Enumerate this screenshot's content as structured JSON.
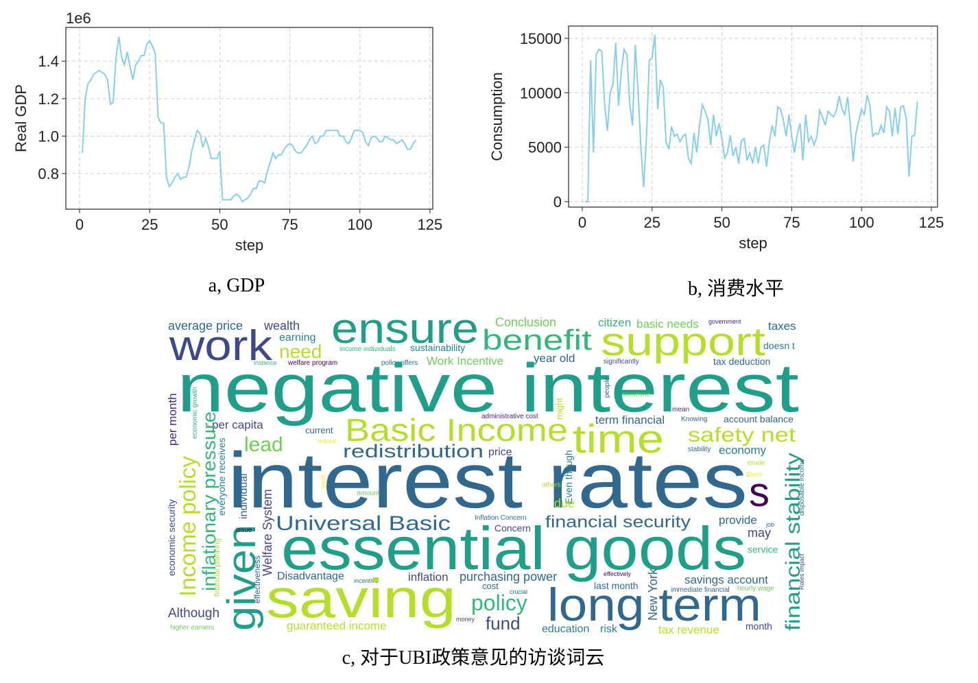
{
  "chart_data": [
    {
      "type": "line",
      "ylabel": "Real GDP",
      "xlabel": "step",
      "offset_text": "1e6",
      "caption": "a, GDP",
      "grid": true,
      "xlim": [
        -4.9,
        126
      ],
      "ylim": [
        0.61,
        1.58
      ],
      "xticks": [
        0,
        25,
        50,
        75,
        100,
        125
      ],
      "yticks": [
        {
          "value": 0.8,
          "label": "0.8"
        },
        {
          "value": 1.0,
          "label": "1.0"
        },
        {
          "value": 1.2,
          "label": "1.2"
        },
        {
          "value": 1.4,
          "label": "1.4"
        }
      ],
      "x": [
        1,
        2,
        3,
        4,
        5,
        6,
        7,
        8,
        9,
        10,
        11,
        12,
        13,
        14,
        15,
        16,
        17,
        18,
        19,
        20,
        21,
        22,
        23,
        24,
        25,
        26,
        27,
        28,
        29,
        30,
        31,
        32,
        33,
        34,
        35,
        36,
        37,
        38,
        39,
        40,
        41,
        42,
        43,
        44,
        45,
        46,
        47,
        48,
        49,
        50,
        51,
        52,
        53,
        54,
        55,
        56,
        57,
        58,
        59,
        60,
        61,
        62,
        63,
        64,
        65,
        66,
        67,
        68,
        69,
        70,
        71,
        72,
        73,
        74,
        75,
        76,
        77,
        78,
        79,
        80,
        81,
        82,
        83,
        84,
        85,
        86,
        87,
        88,
        89,
        90,
        91,
        92,
        93,
        94,
        95,
        96,
        97,
        98,
        99,
        100,
        101,
        102,
        103,
        104,
        105,
        106,
        107,
        108,
        109,
        110,
        111,
        112,
        113,
        114,
        115,
        116,
        117,
        118,
        119,
        120
      ],
      "series": [
        {
          "color": "#87ceeb",
          "values": [
            0.91,
            1.2,
            1.28,
            1.3,
            1.33,
            1.34,
            1.35,
            1.34,
            1.33,
            1.3,
            1.17,
            1.18,
            1.42,
            1.53,
            1.42,
            1.38,
            1.45,
            1.37,
            1.3,
            1.38,
            1.4,
            1.43,
            1.43,
            1.49,
            1.51,
            1.48,
            1.44,
            1.1,
            1.07,
            1.07,
            0.78,
            0.73,
            0.75,
            0.78,
            0.8,
            0.77,
            0.78,
            0.78,
            0.83,
            0.92,
            0.98,
            1.03,
            1.01,
            0.94,
            0.99,
            0.94,
            0.88,
            0.88,
            0.88,
            0.92,
            0.66,
            0.66,
            0.66,
            0.66,
            0.68,
            0.69,
            0.68,
            0.65,
            0.66,
            0.67,
            0.69,
            0.72,
            0.72,
            0.76,
            0.76,
            0.75,
            0.81,
            0.86,
            0.91,
            0.88,
            0.9,
            0.9,
            0.93,
            0.95,
            0.96,
            0.95,
            0.92,
            0.91,
            0.91,
            0.93,
            0.95,
            0.98,
            1.0,
            0.96,
            0.97,
            1.0,
            1.0,
            1.03,
            1.03,
            1.03,
            1.03,
            1.03,
            1.0,
            1.0,
            0.97,
            0.96,
            0.99,
            1.03,
            1.03,
            1.03,
            1.02,
            0.97,
            0.95,
            0.99,
            1.0,
            0.99,
            0.97,
            0.97,
            1.0,
            0.99,
            0.98,
            0.98,
            0.96,
            0.97,
            0.98,
            0.96,
            0.93,
            0.93,
            0.96,
            0.98
          ]
        }
      ]
    },
    {
      "type": "line",
      "ylabel": "Consumption",
      "xlabel": "step",
      "caption": "b, 消费水平",
      "grid": true,
      "xlim": [
        -4.9,
        127.2
      ],
      "ylim": [
        -500,
        16130
      ],
      "xticks": [
        0,
        25,
        50,
        75,
        100,
        125
      ],
      "yticks": [
        0,
        5000,
        10000,
        15000
      ],
      "x": [
        1,
        2,
        3,
        4,
        5,
        6,
        7,
        8,
        9,
        10,
        11,
        12,
        13,
        14,
        15,
        16,
        17,
        18,
        19,
        20,
        21,
        22,
        23,
        24,
        25,
        26,
        27,
        28,
        29,
        30,
        31,
        32,
        33,
        34,
        35,
        36,
        37,
        38,
        39,
        40,
        41,
        42,
        43,
        44,
        45,
        46,
        47,
        48,
        49,
        50,
        51,
        52,
        53,
        54,
        55,
        56,
        57,
        58,
        59,
        60,
        61,
        62,
        63,
        64,
        65,
        66,
        67,
        68,
        69,
        70,
        71,
        72,
        73,
        74,
        75,
        76,
        77,
        78,
        79,
        80,
        81,
        82,
        83,
        84,
        85,
        86,
        87,
        88,
        89,
        90,
        91,
        92,
        93,
        94,
        95,
        96,
        97,
        98,
        99,
        100,
        101,
        102,
        103,
        104,
        105,
        106,
        107,
        108,
        109,
        110,
        111,
        112,
        113,
        114,
        115,
        116,
        117,
        118,
        119,
        120
      ],
      "series": [
        {
          "color": "#87ceeb",
          "values": [
            0,
            0,
            13000,
            4500,
            13500,
            14000,
            13800,
            9000,
            6500,
            10000,
            10800,
            14600,
            8800,
            12000,
            14000,
            13500,
            9000,
            7000,
            14400,
            10000,
            5000,
            1300,
            6000,
            13000,
            13200,
            15300,
            8500,
            11200,
            10500,
            5500,
            4800,
            6900,
            6000,
            6200,
            5500,
            6000,
            6200,
            4000,
            3500,
            6300,
            4500,
            7000,
            8900,
            8300,
            7500,
            5200,
            8000,
            6000,
            7200,
            5800,
            4000,
            4500,
            6100,
            4200,
            5000,
            3500,
            5600,
            5800,
            3800,
            4500,
            3500,
            5000,
            3500,
            5000,
            5200,
            3200,
            5500,
            7000,
            6000,
            8700,
            8500,
            7500,
            6000,
            8000,
            6000,
            4500,
            6200,
            7200,
            3800,
            8000,
            5500,
            6000,
            5200,
            6000,
            8400,
            7800,
            7000,
            8300,
            8000,
            7800,
            8400,
            9700,
            8500,
            8000,
            9600,
            7000,
            3700,
            6300,
            7400,
            8500,
            8000,
            9800,
            8800,
            6000,
            6300,
            6200,
            7000,
            6300,
            8700,
            8300,
            6000,
            8600,
            6200,
            8700,
            8800,
            7600,
            2300,
            6000,
            6100,
            9200
          ]
        }
      ]
    },
    {
      "type": "wordcloud",
      "caption": "c, 对于UBI政策意见的访谈词云",
      "words": [
        "average price",
        "wealth",
        "earning",
        "ensure",
        "Conclusion",
        "citizen",
        "basic needs",
        "government",
        "taxes",
        "work",
        "need",
        "benefit",
        "support",
        "income individuals",
        "sustainability",
        "doesn t",
        "instance",
        "welfare program",
        "policy offers",
        "Work Incentive",
        "year old",
        "significantly",
        "tax deduction",
        "negative interest",
        "per month",
        "economic growth",
        "might",
        "people",
        "someone",
        "administrative cost",
        "mean",
        "term financial",
        "Knowing",
        "account balance",
        "per capita",
        "current",
        "Basic Income",
        "time",
        "safety net",
        "reduce",
        "lead",
        "redistribution",
        "price",
        "stability",
        "economy",
        "interest rates",
        "s",
        "Income policy",
        "inflationary pressure",
        "everyone receives",
        "individual",
        "good",
        "amount",
        "others",
        "Even though",
        "erode",
        "Even",
        "financial stability",
        "disposable income",
        "due",
        "economic security",
        "given",
        "Welfare System",
        "Universal Basic",
        "Inflation Concern",
        "Concern",
        "financial security",
        "provide",
        "job",
        "issue",
        "may",
        "financial planning",
        "effectiveness",
        "essential goods",
        "service",
        "Rates impact",
        "Disadvantage",
        "incentive",
        "inflation",
        "purchasing power",
        "effectively",
        "savings account",
        "New York",
        "saving",
        "cost",
        "crucial",
        "last month",
        "immediate financial",
        "hourly wage",
        "policy",
        "long term",
        "Although",
        "money",
        "fund",
        "higher earners",
        "guaranteed income",
        "education",
        "risk",
        "tax revenue",
        "month"
      ]
    }
  ]
}
